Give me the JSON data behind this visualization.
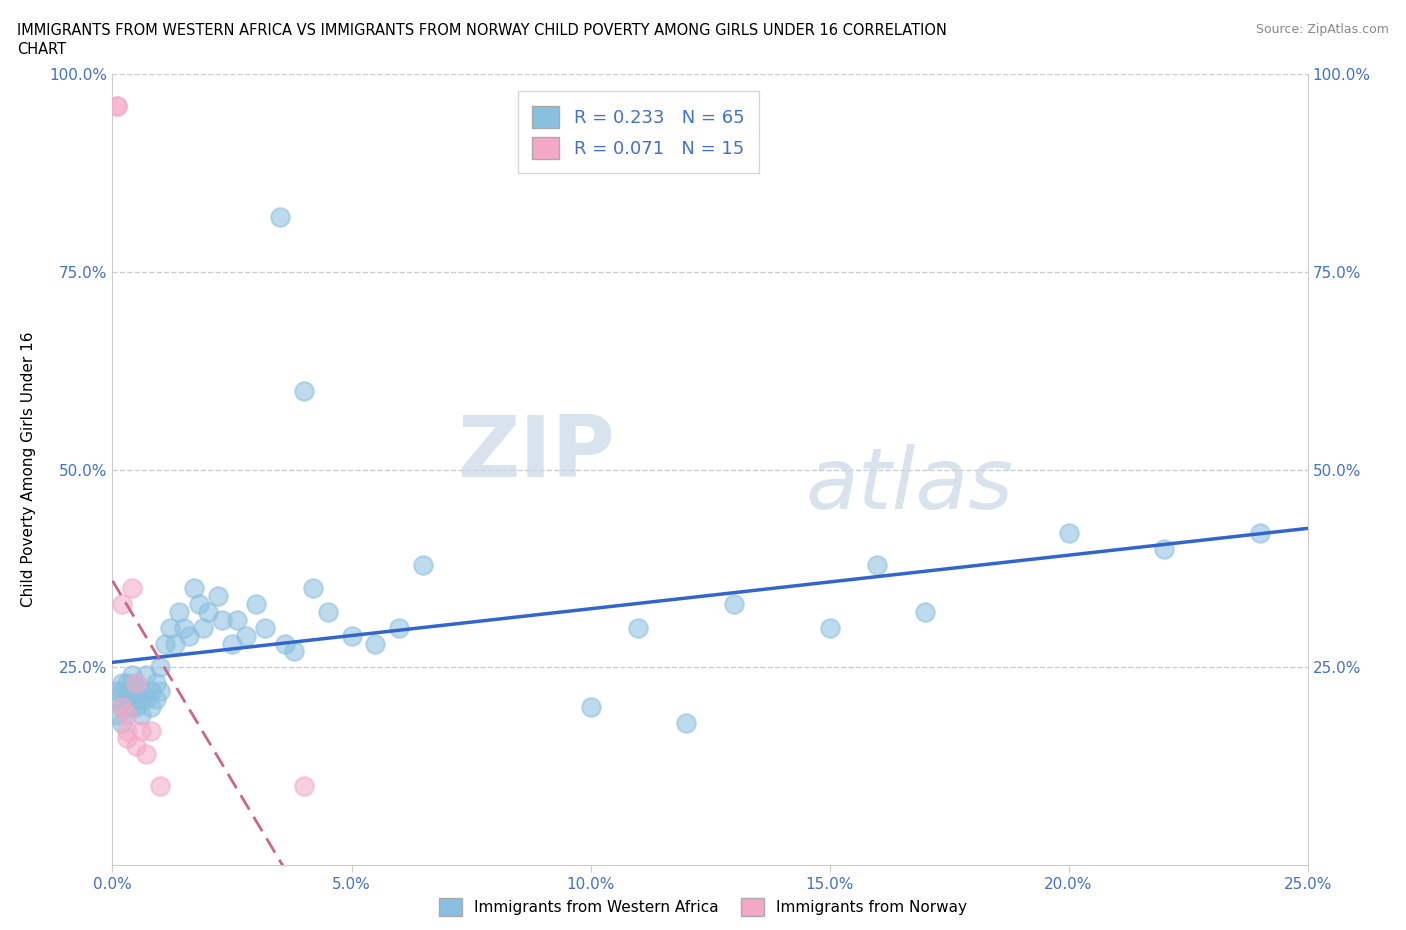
{
  "title_line1": "IMMIGRANTS FROM WESTERN AFRICA VS IMMIGRANTS FROM NORWAY CHILD POVERTY AMONG GIRLS UNDER 16 CORRELATION",
  "title_line2": "CHART",
  "source_text": "Source: ZipAtlas.com",
  "ylabel": "Child Poverty Among Girls Under 16",
  "xlabel_blue": "Immigrants from Western Africa",
  "xlabel_pink": "Immigrants from Norway",
  "xlim": [
    0,
    0.25
  ],
  "ylim": [
    0,
    1.0
  ],
  "xticks": [
    0.0,
    0.05,
    0.1,
    0.15,
    0.2,
    0.25
  ],
  "xtick_labels": [
    "0.0%",
    "5.0%",
    "10.0%",
    "15.0%",
    "20.0%",
    "25.0%"
  ],
  "yticks": [
    0.0,
    0.25,
    0.5,
    0.75,
    1.0
  ],
  "ytick_labels": [
    "",
    "25.0%",
    "50.0%",
    "75.0%",
    "100.0%"
  ],
  "legend_R_blue": "R = 0.233",
  "legend_N_blue": "N = 65",
  "legend_R_pink": "R = 0.071",
  "legend_N_pink": "N = 15",
  "blue_color": "#89bfdf",
  "pink_color": "#f4a8c7",
  "blue_line_color": "#3366cc",
  "pink_line_color": "#cc6688",
  "watermark_zip": "ZIP",
  "watermark_atlas": "atlas",
  "blue_x": [
    0.001,
    0.001,
    0.001,
    0.002,
    0.002,
    0.002,
    0.002,
    0.003,
    0.003,
    0.003,
    0.003,
    0.004,
    0.004,
    0.004,
    0.005,
    0.005,
    0.005,
    0.006,
    0.006,
    0.006,
    0.007,
    0.007,
    0.008,
    0.008,
    0.009,
    0.009,
    0.01,
    0.01,
    0.011,
    0.012,
    0.013,
    0.014,
    0.015,
    0.016,
    0.017,
    0.018,
    0.019,
    0.02,
    0.022,
    0.023,
    0.025,
    0.026,
    0.028,
    0.03,
    0.032,
    0.035,
    0.036,
    0.038,
    0.04,
    0.042,
    0.045,
    0.05,
    0.055,
    0.06,
    0.065,
    0.1,
    0.11,
    0.12,
    0.13,
    0.15,
    0.16,
    0.17,
    0.2,
    0.22,
    0.24
  ],
  "blue_y": [
    0.21,
    0.22,
    0.19,
    0.23,
    0.2,
    0.22,
    0.18,
    0.21,
    0.23,
    0.2,
    0.22,
    0.2,
    0.24,
    0.21,
    0.22,
    0.2,
    0.23,
    0.21,
    0.22,
    0.19,
    0.24,
    0.21,
    0.22,
    0.2,
    0.23,
    0.21,
    0.22,
    0.25,
    0.28,
    0.3,
    0.28,
    0.32,
    0.3,
    0.29,
    0.35,
    0.33,
    0.3,
    0.32,
    0.34,
    0.31,
    0.28,
    0.31,
    0.29,
    0.33,
    0.3,
    0.82,
    0.28,
    0.27,
    0.6,
    0.35,
    0.32,
    0.29,
    0.28,
    0.3,
    0.38,
    0.2,
    0.3,
    0.18,
    0.33,
    0.3,
    0.38,
    0.32,
    0.42,
    0.4,
    0.42
  ],
  "pink_x": [
    0.001,
    0.001,
    0.002,
    0.002,
    0.003,
    0.003,
    0.003,
    0.004,
    0.005,
    0.005,
    0.006,
    0.007,
    0.008,
    0.01,
    0.04
  ],
  "pink_y": [
    0.96,
    0.96,
    0.2,
    0.33,
    0.17,
    0.19,
    0.16,
    0.35,
    0.23,
    0.15,
    0.17,
    0.14,
    0.17,
    0.1,
    0.1
  ]
}
